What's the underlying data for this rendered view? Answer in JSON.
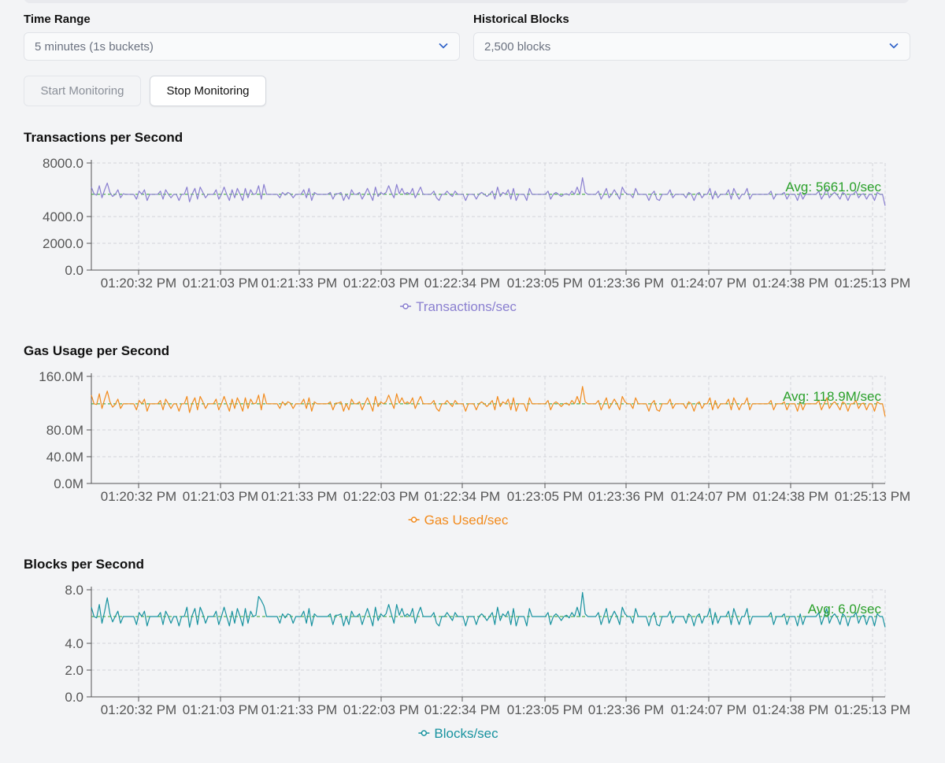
{
  "controls": {
    "time_range": {
      "label": "Time Range",
      "value": "5 minutes (1s buckets)"
    },
    "historical_blocks": {
      "label": "Historical Blocks",
      "value": "2,500 blocks"
    },
    "start_label": "Start Monitoring",
    "stop_label": "Stop Monitoring"
  },
  "colors": {
    "tps": "#8a7fd0",
    "gas": "#f28a1c",
    "blocks": "#17929f",
    "avg": "#2aa02a"
  },
  "chart_data": [
    {
      "type": "line",
      "title": "Transactions per Second",
      "series": [
        {
          "name": "Transactions/sec",
          "color": "#8a7fd0"
        }
      ],
      "yticks": [
        "0.0",
        "2000.0",
        "4000.0",
        "8000.0"
      ],
      "ytick_values": [
        0,
        2000,
        4000,
        8000
      ],
      "ylim": [
        0,
        8000
      ],
      "x_ticks": [
        "01:20:32 PM",
        "01:21:03 PM",
        "01:21:33 PM",
        "01:22:03 PM",
        "01:22:34 PM",
        "01:23:05 PM",
        "01:23:36 PM",
        "01:24:07 PM",
        "01:24:38 PM",
        "01:25:13 PM"
      ],
      "average": {
        "value": 5661.0,
        "label": "Avg: 5661.0/sec"
      },
      "values": [
        6200,
        5700,
        5600,
        6300,
        5400,
        6000,
        6500,
        5800,
        5500,
        5650,
        6000,
        5400,
        5700,
        5660,
        5660,
        5660,
        5660,
        5300,
        5900,
        5660,
        6000,
        5200,
        5660,
        5660,
        5660,
        5660,
        5900,
        5300,
        6000,
        5660,
        5400,
        5660,
        5660,
        5200,
        5660,
        5660,
        6200,
        5100,
        5700,
        6100,
        5300,
        6200,
        5800,
        5400,
        5660,
        5660,
        5660,
        6000,
        5300,
        5660,
        6200,
        5660,
        5200,
        6000,
        5400,
        6100,
        5660,
        5200,
        6100,
        5400,
        6000,
        5660,
        5700,
        6300,
        5300,
        6400,
        5660,
        5660,
        5660,
        5660,
        5660,
        5400,
        5800,
        5600,
        5800,
        5700,
        5400,
        5660,
        5660,
        5660,
        6000,
        5400,
        6100,
        5200,
        5800,
        5660,
        5660,
        5660,
        5660,
        5660,
        5800,
        5300,
        5700,
        5700,
        5800,
        5200,
        5660,
        5300,
        6000,
        5660,
        5660,
        5800,
        5300,
        5660,
        6100,
        5660,
        5200,
        6200,
        5500,
        5800,
        5660,
        5800,
        6300,
        5800,
        5400,
        6400,
        5700,
        6100,
        5660,
        5800,
        5660,
        6100,
        5400,
        5800,
        6200,
        5660,
        5660,
        5660,
        5660,
        5900,
        5400,
        5200,
        5660,
        5660,
        5900,
        5660,
        5500,
        5900,
        5660,
        5660,
        5660,
        5200,
        5660,
        5660,
        5660,
        5300,
        5660,
        5800,
        5660,
        5500,
        5660,
        5900,
        5300,
        6200,
        5500,
        5800,
        5660,
        6000,
        5300,
        6100,
        5200,
        5660,
        5660,
        5660,
        5200,
        6100,
        5660,
        5660,
        5660,
        5660,
        5660,
        5660,
        5900,
        5300,
        5660,
        5800,
        5660,
        5500,
        5660,
        5700,
        5600,
        5900,
        5660,
        6200,
        5660,
        6900,
        5800,
        5660,
        5660,
        5660,
        5660,
        5900,
        5300,
        5660,
        6100,
        5400,
        5660,
        6000,
        5660,
        5300,
        6200,
        5800,
        5660,
        5660,
        5400,
        6100,
        5660,
        5660,
        5660,
        5660,
        5200,
        5660,
        5900,
        5300,
        5200,
        5660,
        5660,
        5660,
        6000,
        5400,
        5660,
        5660,
        5660,
        5660,
        5400,
        5800,
        5660,
        5200,
        5660,
        5800,
        5400,
        5660,
        5660,
        6100,
        5300,
        5900,
        5400,
        5660,
        5660,
        5660,
        6000,
        5300,
        6100,
        5660,
        5300,
        5660,
        5660,
        6100,
        5300,
        5660,
        5660,
        5660,
        5660,
        5660,
        5660,
        5660,
        5900,
        5300,
        5660,
        5660,
        5660,
        5800,
        5300,
        5660,
        5660,
        5660,
        5200,
        5800,
        5300,
        5660,
        5660,
        5660,
        5660,
        5660,
        5900,
        5300,
        5660,
        6100,
        5400,
        5660,
        5800,
        5600,
        5300,
        5800,
        5660,
        5200,
        5660,
        5660,
        5900,
        5400,
        5660,
        5700,
        5300,
        5660,
        5660,
        5200,
        5800,
        5660,
        5660,
        4800
      ]
    },
    {
      "type": "line",
      "title": "Gas Usage per Second",
      "series": [
        {
          "name": "Gas Used/sec",
          "color": "#f28a1c"
        }
      ],
      "yticks": [
        "0.0M",
        "40.0M",
        "80.0M",
        "160.0M"
      ],
      "ytick_values": [
        0,
        40,
        80,
        160
      ],
      "ylim": [
        0,
        160
      ],
      "x_ticks": [
        "01:20:32 PM",
        "01:21:03 PM",
        "01:21:33 PM",
        "01:22:03 PM",
        "01:22:34 PM",
        "01:23:05 PM",
        "01:23:36 PM",
        "01:24:07 PM",
        "01:24:38 PM",
        "01:25:13 PM"
      ],
      "average": {
        "value": 118.9,
        "label": "Avg: 118.9M/sec"
      },
      "values": [
        132,
        119,
        118,
        134,
        112,
        126,
        138,
        122,
        114,
        118,
        126,
        112,
        119,
        119,
        119,
        119,
        119,
        110,
        124,
        119,
        126,
        108,
        119,
        119,
        119,
        119,
        124,
        110,
        126,
        119,
        112,
        119,
        119,
        108,
        119,
        119,
        130,
        106,
        120,
        128,
        110,
        130,
        122,
        112,
        119,
        119,
        119,
        126,
        110,
        119,
        130,
        119,
        108,
        126,
        112,
        128,
        119,
        108,
        128,
        112,
        126,
        119,
        120,
        132,
        110,
        134,
        119,
        119,
        119,
        119,
        119,
        112,
        122,
        117,
        122,
        120,
        112,
        119,
        119,
        119,
        126,
        112,
        128,
        108,
        122,
        119,
        119,
        119,
        119,
        119,
        122,
        110,
        120,
        120,
        122,
        108,
        119,
        110,
        126,
        119,
        119,
        122,
        110,
        119,
        128,
        119,
        108,
        130,
        115,
        122,
        119,
        122,
        132,
        122,
        112,
        134,
        120,
        128,
        119,
        122,
        119,
        128,
        112,
        122,
        130,
        119,
        119,
        119,
        119,
        124,
        112,
        108,
        119,
        119,
        124,
        119,
        115,
        124,
        119,
        119,
        119,
        108,
        119,
        119,
        119,
        110,
        119,
        122,
        119,
        115,
        119,
        124,
        110,
        130,
        115,
        122,
        119,
        126,
        110,
        128,
        108,
        119,
        119,
        119,
        108,
        128,
        119,
        119,
        119,
        119,
        119,
        119,
        124,
        110,
        119,
        122,
        119,
        115,
        119,
        120,
        117,
        124,
        119,
        130,
        119,
        145,
        122,
        119,
        119,
        119,
        119,
        124,
        110,
        119,
        128,
        112,
        119,
        126,
        119,
        110,
        130,
        122,
        119,
        119,
        112,
        128,
        119,
        119,
        119,
        119,
        108,
        119,
        124,
        110,
        108,
        119,
        119,
        119,
        126,
        112,
        119,
        119,
        119,
        119,
        112,
        122,
        119,
        108,
        119,
        122,
        112,
        119,
        119,
        128,
        110,
        124,
        112,
        119,
        119,
        119,
        126,
        110,
        128,
        119,
        110,
        119,
        119,
        128,
        110,
        119,
        119,
        119,
        119,
        119,
        119,
        119,
        124,
        110,
        119,
        119,
        119,
        122,
        110,
        119,
        119,
        119,
        108,
        122,
        110,
        119,
        119,
        119,
        119,
        119,
        124,
        110,
        119,
        128,
        112,
        119,
        122,
        117,
        110,
        122,
        119,
        108,
        119,
        119,
        124,
        112,
        119,
        120,
        110,
        119,
        119,
        108,
        122,
        119,
        119,
        100
      ]
    },
    {
      "type": "line",
      "title": "Blocks per Second",
      "series": [
        {
          "name": "Blocks/sec",
          "color": "#17929f"
        }
      ],
      "yticks": [
        "0.0",
        "2.0",
        "4.0",
        "8.0"
      ],
      "ytick_values": [
        0,
        2,
        4,
        8
      ],
      "ylim": [
        0,
        8
      ],
      "x_ticks": [
        "01:20:32 PM",
        "01:21:03 PM",
        "01:21:33 PM",
        "01:22:03 PM",
        "01:22:34 PM",
        "01:23:05 PM",
        "01:23:36 PM",
        "01:24:07 PM",
        "01:24:38 PM",
        "01:25:13 PM"
      ],
      "average": {
        "value": 6.0,
        "label": "Avg: 6.0/sec"
      },
      "values": [
        6.7,
        6.0,
        5.9,
        6.9,
        5.5,
        6.4,
        7.4,
        6.2,
        5.6,
        6.0,
        6.4,
        5.5,
        6.0,
        6.0,
        6.0,
        6.0,
        6.0,
        5.4,
        6.3,
        6.0,
        6.4,
        5.3,
        6.0,
        6.0,
        6.0,
        6.0,
        6.3,
        5.4,
        6.4,
        6.0,
        5.5,
        6.0,
        6.0,
        5.3,
        6.0,
        6.0,
        6.7,
        5.2,
        6.1,
        6.6,
        5.4,
        6.7,
        6.2,
        5.5,
        6.0,
        6.0,
        6.0,
        6.4,
        5.4,
        6.0,
        6.7,
        6.0,
        5.3,
        6.4,
        5.5,
        6.6,
        6.0,
        5.3,
        6.6,
        5.5,
        6.4,
        6.0,
        6.1,
        7.5,
        7.2,
        6.8,
        6.0,
        6.0,
        6.0,
        6.0,
        6.0,
        5.5,
        6.2,
        5.9,
        6.2,
        6.1,
        5.5,
        6.0,
        6.0,
        6.0,
        6.4,
        5.5,
        6.6,
        5.3,
        6.2,
        6.0,
        6.0,
        6.0,
        6.0,
        6.0,
        6.2,
        5.4,
        6.1,
        6.1,
        6.2,
        5.3,
        6.0,
        5.4,
        6.4,
        6.0,
        6.0,
        6.2,
        5.4,
        6.0,
        6.6,
        6.0,
        5.3,
        6.7,
        5.7,
        6.2,
        6.0,
        6.2,
        6.9,
        6.2,
        5.5,
        6.9,
        6.1,
        6.6,
        6.0,
        6.2,
        6.0,
        6.6,
        5.5,
        6.2,
        6.7,
        6.0,
        6.0,
        6.0,
        6.0,
        6.3,
        5.5,
        5.3,
        6.0,
        6.0,
        6.3,
        6.0,
        5.7,
        6.3,
        6.0,
        6.0,
        6.0,
        5.3,
        6.0,
        6.0,
        6.0,
        5.4,
        6.0,
        6.2,
        6.0,
        5.7,
        6.0,
        6.3,
        5.4,
        6.7,
        5.7,
        6.2,
        6.0,
        6.4,
        5.4,
        6.6,
        5.3,
        6.0,
        6.0,
        6.0,
        5.3,
        6.6,
        6.0,
        6.0,
        6.0,
        6.0,
        6.0,
        6.0,
        6.3,
        5.4,
        6.0,
        6.2,
        6.0,
        5.7,
        6.0,
        6.1,
        5.9,
        6.3,
        6.0,
        6.7,
        6.0,
        7.8,
        6.2,
        6.0,
        6.0,
        6.0,
        6.0,
        6.3,
        5.4,
        6.0,
        6.6,
        5.5,
        6.0,
        6.4,
        6.0,
        5.4,
        6.7,
        6.2,
        6.0,
        6.0,
        5.5,
        6.6,
        6.0,
        6.0,
        6.0,
        6.0,
        5.3,
        6.0,
        6.3,
        5.4,
        5.3,
        6.0,
        6.0,
        6.0,
        6.4,
        5.5,
        6.0,
        6.0,
        6.0,
        6.0,
        5.5,
        6.2,
        6.0,
        5.3,
        6.0,
        6.2,
        5.5,
        6.0,
        6.0,
        6.6,
        5.4,
        6.3,
        5.5,
        6.0,
        6.0,
        6.0,
        6.4,
        5.4,
        6.6,
        6.0,
        5.4,
        6.0,
        6.0,
        6.6,
        5.4,
        6.0,
        6.0,
        6.0,
        6.0,
        6.0,
        6.0,
        6.0,
        6.3,
        5.4,
        6.0,
        6.0,
        6.0,
        6.2,
        5.4,
        6.0,
        6.0,
        6.0,
        5.3,
        6.2,
        5.4,
        6.0,
        6.0,
        6.0,
        6.0,
        6.0,
        6.3,
        5.4,
        6.0,
        6.6,
        5.5,
        6.0,
        6.2,
        5.9,
        5.4,
        6.2,
        6.0,
        5.3,
        6.0,
        6.0,
        6.3,
        5.5,
        6.0,
        6.1,
        5.4,
        6.0,
        6.0,
        5.3,
        6.2,
        6.0,
        6.0,
        5.2
      ]
    }
  ]
}
